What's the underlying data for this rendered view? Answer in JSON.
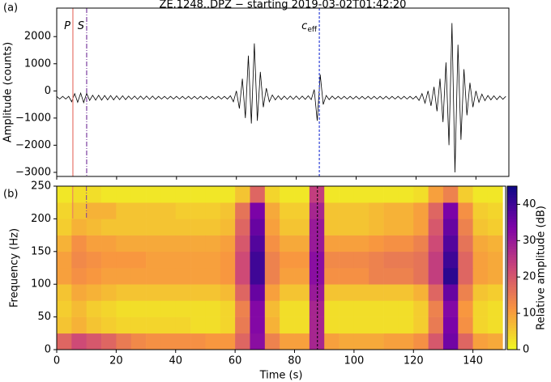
{
  "chart_data": [
    {
      "type": "line",
      "panel_label": "(a)",
      "title": "ZE.1248..DPZ − starting 2019-03-02T01:42:20",
      "ylabel": "Amplitude (counts)",
      "color": "#000000",
      "xlim": [
        0,
        151
      ],
      "ylim": [
        -3150,
        3050
      ],
      "xticks": [
        0,
        20,
        40,
        60,
        80,
        100,
        120,
        140
      ],
      "yticks": [
        {
          "value": -3000,
          "label": "−3000"
        },
        {
          "value": -2000,
          "label": "−2000"
        },
        {
          "value": -1000,
          "label": "−1000"
        },
        0,
        1000,
        2000
      ],
      "markers": [
        {
          "label": "P",
          "x": 5.4,
          "color": "#e8756b",
          "dash": "none"
        },
        {
          "label": "S",
          "x": 10,
          "color": "#7b3fa0",
          "dash": "6 2 1 2"
        },
        {
          "label": "c",
          "subscript": "eff",
          "x": 87.7,
          "color": "#2c3fd6",
          "dash": "3 2"
        }
      ],
      "x": [
        0,
        1,
        2,
        3,
        4,
        5,
        6,
        7,
        8,
        9,
        10,
        11,
        12,
        13,
        14,
        15,
        16,
        17,
        18,
        19,
        20,
        21,
        22,
        23,
        24,
        25,
        26,
        27,
        28,
        29,
        30,
        31,
        32,
        33,
        34,
        35,
        36,
        37,
        38,
        39,
        40,
        41,
        42,
        43,
        44,
        45,
        46,
        47,
        48,
        49,
        50,
        51,
        52,
        53,
        54,
        55,
        56,
        57,
        58,
        59,
        60,
        61,
        62,
        63,
        64,
        65,
        66,
        67,
        68,
        69,
        70,
        71,
        72,
        73,
        74,
        75,
        76,
        77,
        78,
        79,
        80,
        81,
        82,
        83,
        84,
        85,
        86,
        87,
        88,
        89,
        90,
        91,
        92,
        93,
        94,
        95,
        96,
        97,
        98,
        99,
        100,
        101,
        102,
        103,
        104,
        105,
        106,
        107,
        108,
        109,
        110,
        111,
        112,
        113,
        114,
        115,
        116,
        117,
        118,
        119,
        120,
        121,
        122,
        123,
        124,
        125,
        126,
        127,
        128,
        129,
        130,
        131,
        132,
        133,
        134,
        135,
        136,
        137,
        138,
        139,
        140,
        141,
        142,
        143,
        144,
        145,
        146,
        147,
        148,
        149,
        150
      ],
      "values": [
        -200,
        -300,
        -200,
        -300,
        -200,
        -400,
        -100,
        -420,
        -80,
        -430,
        -90,
        -350,
        -160,
        -340,
        -160,
        -340,
        -170,
        -330,
        -170,
        -330,
        -180,
        -320,
        -180,
        -320,
        -190,
        -310,
        -190,
        -310,
        -190,
        -310,
        -190,
        -310,
        -190,
        -310,
        -200,
        -300,
        -200,
        -300,
        -200,
        -300,
        -200,
        -300,
        -200,
        -300,
        -200,
        -300,
        -200,
        -300,
        -200,
        -300,
        -200,
        -300,
        -200,
        -300,
        -200,
        -300,
        -200,
        -300,
        -180,
        -400,
        0,
        -650,
        450,
        -1000,
        1300,
        -1200,
        1750,
        -1100,
        700,
        -600,
        100,
        -400,
        -150,
        -330,
        -180,
        -320,
        -190,
        -310,
        -190,
        -310,
        -190,
        -310,
        -190,
        -310,
        -180,
        -320,
        50,
        -1100,
        600,
        -500,
        -170,
        -320,
        -190,
        -300,
        -200,
        -300,
        -200,
        -300,
        -200,
        -300,
        -200,
        -300,
        -200,
        -300,
        -200,
        -300,
        -200,
        -300,
        -200,
        -300,
        -200,
        -300,
        -200,
        -300,
        -200,
        -300,
        -200,
        -300,
        -200,
        -300,
        -200,
        -350,
        -100,
        -450,
        0,
        -550,
        150,
        -750,
        450,
        -1150,
        1050,
        -2000,
        2500,
        -3000,
        1700,
        -1800,
        800,
        -900,
        300,
        -600,
        0,
        -420,
        -120,
        -360,
        -170,
        -330,
        -180,
        -320,
        -190,
        -310,
        -200
      ]
    },
    {
      "type": "heatmap",
      "panel_label": "(b)",
      "xlabel": "Time (s)",
      "ylabel": "Frequency (Hz)",
      "colorbar_label": "Relative amplitude (dB)",
      "colormap": "plasma_r",
      "xlim": [
        0,
        151
      ],
      "ylim": [
        0,
        250
      ],
      "clim": [
        0,
        45
      ],
      "xticks": [
        0,
        20,
        40,
        60,
        80,
        100,
        120,
        140
      ],
      "yticks": [
        0,
        50,
        100,
        150,
        200,
        250
      ],
      "cticks": [
        0,
        10,
        20,
        30,
        40
      ],
      "xbins": [
        0,
        5,
        10,
        15,
        20,
        25,
        30,
        35,
        40,
        45,
        50,
        55,
        60,
        65,
        70,
        75,
        80,
        85,
        90,
        95,
        100,
        105,
        110,
        115,
        120,
        125,
        130,
        135,
        140,
        145,
        150
      ],
      "ybins": [
        0,
        25,
        50,
        75,
        100,
        125,
        150,
        175,
        200,
        225,
        250
      ],
      "z": [
        [
          18,
          22,
          20,
          18,
          15,
          13,
          12,
          12,
          12,
          12,
          11,
          11,
          18,
          32,
          14,
          10,
          10,
          28,
          10,
          9,
          9,
          9,
          10,
          10,
          12,
          20,
          35,
          18,
          10,
          9
        ],
        [
          6,
          8,
          6,
          5,
          4,
          4,
          4,
          4,
          4,
          3,
          3,
          4,
          15,
          33,
          8,
          3,
          3,
          28,
          3,
          3,
          3,
          3,
          3,
          3,
          5,
          15,
          34,
          12,
          4,
          3
        ],
        [
          5,
          7,
          5,
          4,
          3,
          3,
          3,
          3,
          3,
          3,
          3,
          4,
          14,
          33,
          7,
          3,
          3,
          28,
          3,
          3,
          3,
          3,
          3,
          3,
          5,
          14,
          33,
          11,
          4,
          3
        ],
        [
          6,
          9,
          8,
          7,
          6,
          6,
          6,
          6,
          6,
          6,
          6,
          7,
          18,
          36,
          10,
          6,
          6,
          30,
          6,
          6,
          6,
          6,
          6,
          6,
          8,
          18,
          36,
          14,
          6,
          5
        ],
        [
          10,
          12,
          11,
          10,
          10,
          10,
          10,
          10,
          10,
          10,
          10,
          11,
          22,
          40,
          14,
          10,
          10,
          32,
          12,
          12,
          12,
          14,
          14,
          14,
          16,
          24,
          42,
          18,
          10,
          9
        ],
        [
          10,
          13,
          12,
          11,
          11,
          11,
          10,
          10,
          10,
          10,
          10,
          11,
          22,
          40,
          14,
          11,
          11,
          32,
          13,
          13,
          13,
          14,
          15,
          15,
          16,
          24,
          40,
          18,
          10,
          9
        ],
        [
          8,
          12,
          10,
          10,
          9,
          9,
          9,
          9,
          9,
          9,
          9,
          10,
          20,
          38,
          12,
          9,
          9,
          30,
          10,
          10,
          10,
          11,
          12,
          12,
          14,
          22,
          38,
          16,
          9,
          8
        ],
        [
          5,
          8,
          7,
          6,
          6,
          6,
          6,
          6,
          6,
          6,
          6,
          7,
          18,
          36,
          10,
          6,
          6,
          30,
          6,
          6,
          6,
          7,
          8,
          8,
          10,
          20,
          36,
          14,
          6,
          5
        ],
        [
          4,
          6,
          8,
          8,
          6,
          6,
          6,
          6,
          5,
          5,
          5,
          6,
          16,
          34,
          9,
          5,
          5,
          28,
          6,
          6,
          6,
          7,
          8,
          8,
          10,
          18,
          34,
          12,
          5,
          4
        ],
        [
          2,
          3,
          3,
          2,
          2,
          2,
          2,
          2,
          2,
          2,
          2,
          2,
          6,
          18,
          4,
          2,
          2,
          24,
          2,
          2,
          2,
          2,
          2,
          2,
          3,
          10,
          14,
          5,
          2,
          2
        ]
      ]
    }
  ]
}
